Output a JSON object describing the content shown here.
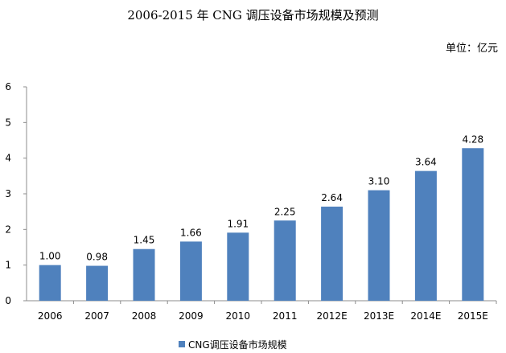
{
  "chart_data": {
    "type": "bar",
    "title": "2006-2015 年 CNG 调压设备市场规模及预测",
    "unit_label": "单位：亿元",
    "categories": [
      "2006",
      "2007",
      "2008",
      "2009",
      "2010",
      "2011",
      "2012E",
      "2013E",
      "2014E",
      "2015E"
    ],
    "series": [
      {
        "name": "CNG调压设备市场规模",
        "values": [
          1.0,
          0.98,
          1.45,
          1.66,
          1.91,
          2.25,
          2.64,
          3.1,
          3.64,
          4.28
        ],
        "value_labels": [
          "1.00",
          "0.98",
          "1.45",
          "1.66",
          "1.91",
          "2.25",
          "2.64",
          "3.10",
          "3.64",
          "4.28"
        ],
        "color": "#4F81BD"
      }
    ],
    "ylim": [
      0,
      6
    ],
    "yticks": [
      "0",
      "1",
      "2",
      "3",
      "4",
      "5",
      "6"
    ],
    "xlabel": "",
    "ylabel": "",
    "grid": false,
    "legend_position": "bottom"
  }
}
